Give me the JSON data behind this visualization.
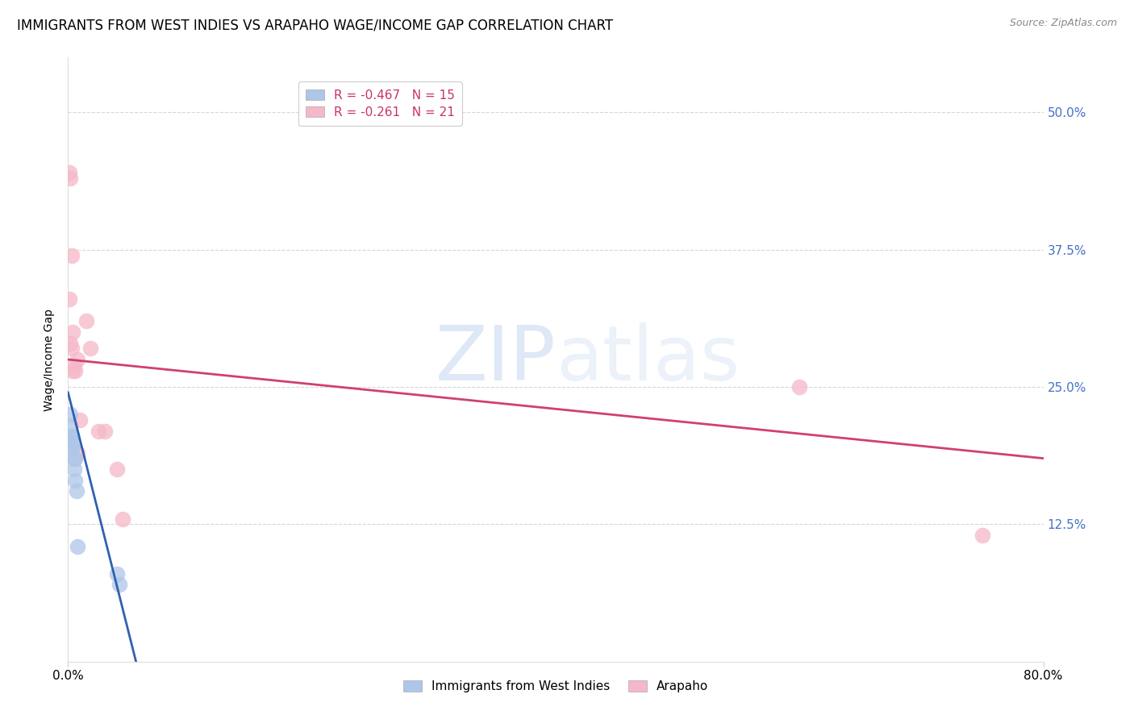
{
  "title": "IMMIGRANTS FROM WEST INDIES VS ARAPAHO WAGE/INCOME GAP CORRELATION CHART",
  "source": "Source: ZipAtlas.com",
  "ylabel": "Wage/Income Gap",
  "ytick_labels": [
    "12.5%",
    "25.0%",
    "37.5%",
    "50.0%"
  ],
  "ytick_values": [
    0.125,
    0.25,
    0.375,
    0.5
  ],
  "xlim": [
    0.0,
    0.8
  ],
  "ylim": [
    0.0,
    0.55
  ],
  "blue_label": "Immigrants from West Indies",
  "pink_label": "Arapaho",
  "blue_R": -0.467,
  "blue_N": 15,
  "pink_R": -0.261,
  "pink_N": 21,
  "blue_color": "#aec6e8",
  "blue_line_color": "#3060b0",
  "pink_color": "#f5b8c8",
  "pink_line_color": "#d04070",
  "background_color": "#ffffff",
  "grid_color": "#cccccc",
  "right_axis_color": "#4472c4",
  "blue_x": [
    0.001,
    0.002,
    0.002,
    0.003,
    0.003,
    0.004,
    0.004,
    0.005,
    0.005,
    0.006,
    0.006,
    0.007,
    0.008,
    0.04,
    0.042
  ],
  "blue_y": [
    0.205,
    0.215,
    0.225,
    0.195,
    0.205,
    0.195,
    0.2,
    0.185,
    0.175,
    0.185,
    0.165,
    0.155,
    0.105,
    0.08,
    0.07
  ],
  "pink_x": [
    0.001,
    0.002,
    0.003,
    0.004,
    0.005,
    0.006,
    0.008,
    0.01,
    0.015,
    0.018,
    0.025,
    0.04,
    0.6,
    0.75,
    0.001,
    0.002,
    0.003,
    0.004,
    0.008,
    0.03,
    0.045
  ],
  "pink_y": [
    0.445,
    0.44,
    0.37,
    0.3,
    0.27,
    0.265,
    0.275,
    0.22,
    0.31,
    0.285,
    0.21,
    0.175,
    0.25,
    0.115,
    0.33,
    0.29,
    0.285,
    0.265,
    0.19,
    0.21,
    0.13
  ],
  "blue_line_x": [
    0.0,
    0.058
  ],
  "blue_line_y": [
    0.245,
    -0.01
  ],
  "pink_line_x": [
    0.0,
    0.8
  ],
  "pink_line_y": [
    0.275,
    0.185
  ],
  "title_fontsize": 12,
  "axis_label_fontsize": 10,
  "legend_fontsize": 11,
  "tick_fontsize": 11
}
